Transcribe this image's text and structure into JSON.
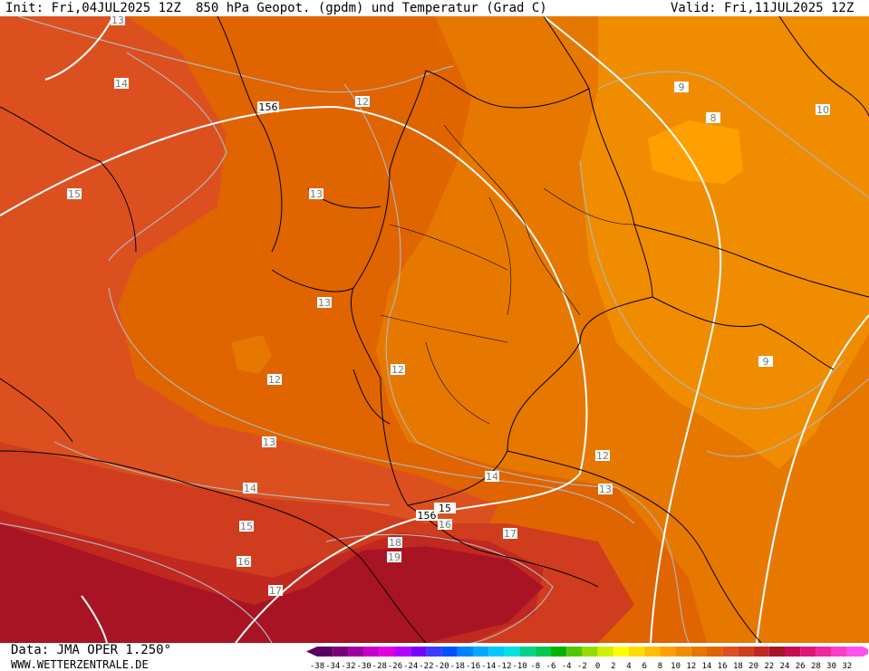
{
  "header": {
    "init": "Init: Fri,04JUL2025 12Z",
    "title": "850 hPa Geopot. (gpdm) und Temperatur (Grad C)",
    "valid": "Valid: Fri,11JUL2025 12Z"
  },
  "footer": {
    "data": "Data: JMA OPER 1.250°",
    "site": "WWW.WETTERZENTRALE.DE"
  },
  "colorbar": {
    "labels": [
      "-38",
      "-34",
      "-32",
      "-30",
      "-28",
      "-26",
      "-24",
      "-22",
      "-20",
      "-18",
      "-16",
      "-14",
      "-12",
      "-10",
      "-8",
      "-6",
      "-4",
      "-2",
      "0",
      "2",
      "4",
      "6",
      "8",
      "10",
      "12",
      "14",
      "16",
      "18",
      "20",
      "22",
      "24",
      "26",
      "28",
      "30",
      "32"
    ],
    "colors": [
      "#5a0060",
      "#7a007a",
      "#a000a0",
      "#c800c8",
      "#e000e0",
      "#b400ff",
      "#7800ff",
      "#3c3cff",
      "#0050ff",
      "#0082ff",
      "#00aaff",
      "#00c8ff",
      "#00e0e0",
      "#00d28c",
      "#00c850",
      "#00b400",
      "#50c800",
      "#96dc00",
      "#d2f000",
      "#ffff00",
      "#ffdc00",
      "#ffbe00",
      "#ffa000",
      "#f08c00",
      "#e67800",
      "#e06400",
      "#dc5020",
      "#d03c1e",
      "#c02820",
      "#a81424",
      "#c80a50",
      "#e01478",
      "#f028a0",
      "#ff3cc8",
      "#ff50f0"
    ]
  },
  "map_labels": {
    "temperature": [
      "13",
      "14",
      "15",
      "12",
      "13",
      "13",
      "12",
      "12",
      "8",
      "9",
      "9",
      "10",
      "13",
      "14",
      "15",
      "16",
      "17",
      "12",
      "14",
      "13",
      "16",
      "17",
      "18",
      "19"
    ],
    "geopotential": [
      "156",
      "156",
      "15"
    ]
  }
}
